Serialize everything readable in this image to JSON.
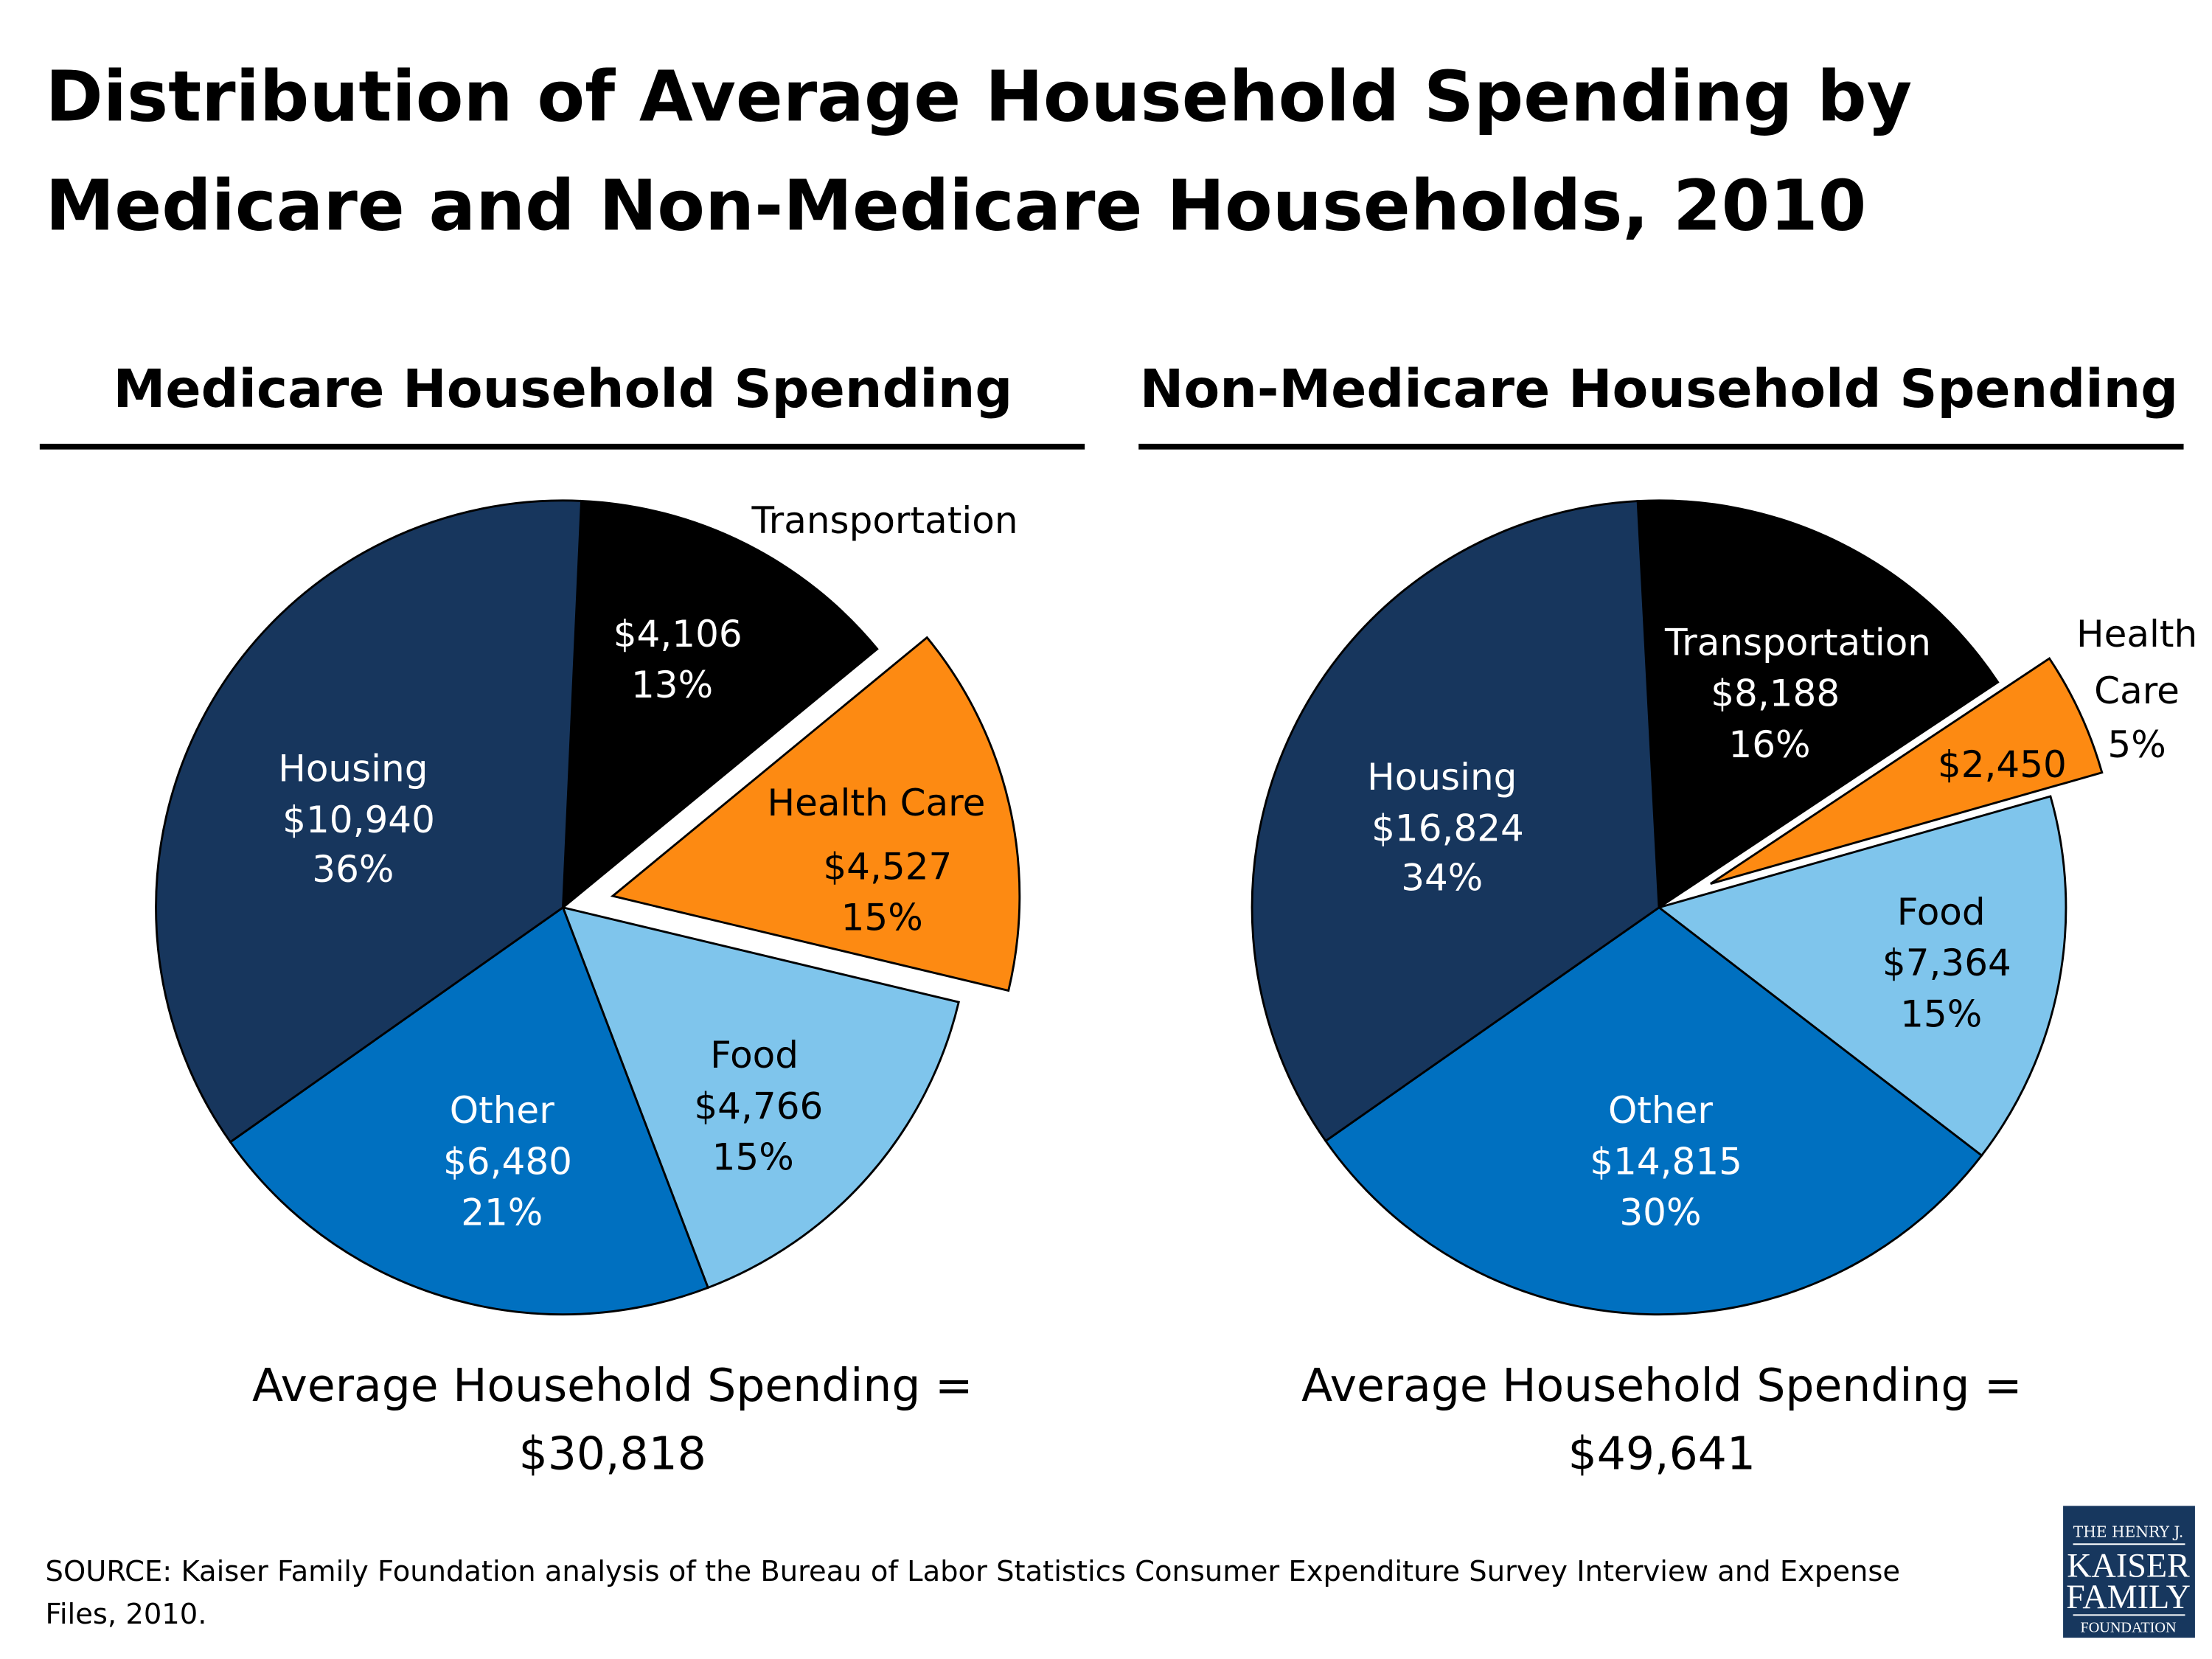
{
  "title_lines": [
    "Distribution of Average Household Spending by",
    "Medicare and Non-Medicare Households, 2010"
  ],
  "colors": {
    "Housing": "#17365d",
    "Transportation": "#000000",
    "Health Care": "#fd8a12",
    "Food": "#7fc5ec",
    "Other": "#0070c0"
  },
  "chart_data": [
    {
      "type": "pie",
      "title": "Medicare Household Spending",
      "categories": [
        "Transportation",
        "Health Care",
        "Food",
        "Other",
        "Housing"
      ],
      "values": [
        4106,
        4527,
        4766,
        6480,
        10940
      ],
      "value_labels": [
        "$4,106",
        "$4,527",
        "$4,766",
        "$6,480",
        "$10,940"
      ],
      "percent_labels": [
        "13%",
        "15%",
        "15%",
        "21%",
        "36%"
      ],
      "exploded": "Health Care",
      "total_label": "Average Household Spending =",
      "total_value": "$30,818"
    },
    {
      "type": "pie",
      "title": "Non-Medicare Household Spending",
      "categories": [
        "Transportation",
        "Health Care",
        "Food",
        "Other",
        "Housing"
      ],
      "values": [
        8188,
        2450,
        7364,
        14815,
        16824
      ],
      "value_labels": [
        "$8,188",
        "$2,450",
        "$7,364",
        "$14,815",
        "$16,824"
      ],
      "percent_labels": [
        "16%",
        "5%",
        "15%",
        "30%",
        "34%"
      ],
      "exploded": "Health Care",
      "total_label": "Average Household Spending =",
      "total_value": "$49,641"
    }
  ],
  "source_lines": [
    "SOURCE: Kaiser Family Foundation analysis of the Bureau of Labor Statistics Consumer Expenditure Survey Interview and Expense",
    "Files, 2010."
  ],
  "logo": {
    "lines": [
      "THE HENRY J.",
      "KAISER",
      "FAMILY",
      "FOUNDATION"
    ]
  }
}
